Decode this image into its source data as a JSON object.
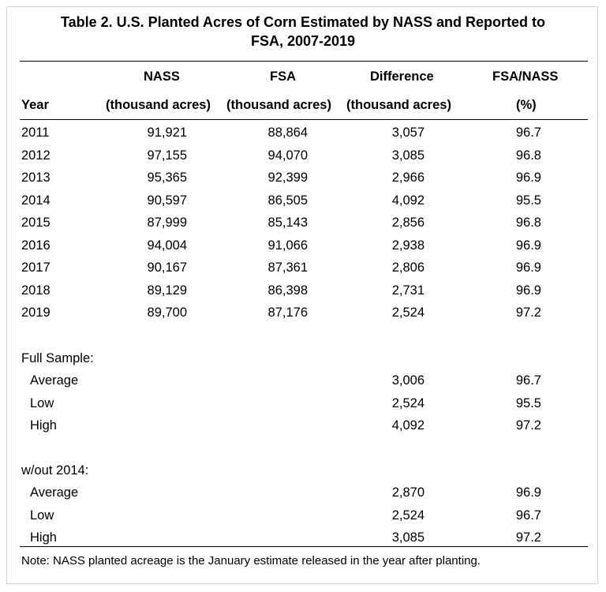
{
  "title_line1": "Table 2. U.S. Planted Acres of Corn Estimated by NASS and Reported to",
  "title_line2": "FSA, 2007-2019",
  "header": {
    "row1": {
      "nass": "NASS",
      "fsa": "FSA",
      "diff": "Difference",
      "pct": "FSA/NASS"
    },
    "row2": {
      "year": "Year",
      "nass": "(thousand acres)",
      "fsa": "(thousand acres)",
      "diff": "(thousand acres)",
      "pct": "(%)"
    }
  },
  "rows": [
    {
      "year": "2011",
      "nass": "91,921",
      "fsa": "88,864",
      "diff": "3,057",
      "pct": "96.7"
    },
    {
      "year": "2012",
      "nass": "97,155",
      "fsa": "94,070",
      "diff": "3,085",
      "pct": "96.8"
    },
    {
      "year": "2013",
      "nass": "95,365",
      "fsa": "92,399",
      "diff": "2,966",
      "pct": "96.9"
    },
    {
      "year": "2014",
      "nass": "90,597",
      "fsa": "86,505",
      "diff": "4,092",
      "pct": "95.5"
    },
    {
      "year": "2015",
      "nass": "87,999",
      "fsa": "85,143",
      "diff": "2,856",
      "pct": "96.8"
    },
    {
      "year": "2016",
      "nass": "94,004",
      "fsa": "91,066",
      "diff": "2,938",
      "pct": "96.9"
    },
    {
      "year": "2017",
      "nass": "90,167",
      "fsa": "87,361",
      "diff": "2,806",
      "pct": "96.9"
    },
    {
      "year": "2018",
      "nass": "89,129",
      "fsa": "86,398",
      "diff": "2,731",
      "pct": "96.9"
    },
    {
      "year": "2019",
      "nass": "89,700",
      "fsa": "87,176",
      "diff": "2,524",
      "pct": "97.2"
    }
  ],
  "full_sample": {
    "label": "Full Sample:",
    "stats": [
      {
        "label": "Average",
        "diff": "3,006",
        "pct": "96.7"
      },
      {
        "label": "Low",
        "diff": "2,524",
        "pct": "95.5"
      },
      {
        "label": "High",
        "diff": "4,092",
        "pct": "97.2"
      }
    ]
  },
  "without_2014": {
    "label": "w/out 2014:",
    "stats": [
      {
        "label": "Average",
        "diff": "2,870",
        "pct": "96.9"
      },
      {
        "label": "Low",
        "diff": "2,524",
        "pct": "96.7"
      },
      {
        "label": "High",
        "diff": "3,085",
        "pct": "97.2"
      }
    ]
  },
  "note": "Note: NASS planted acreage is the January estimate released in the year after planting."
}
